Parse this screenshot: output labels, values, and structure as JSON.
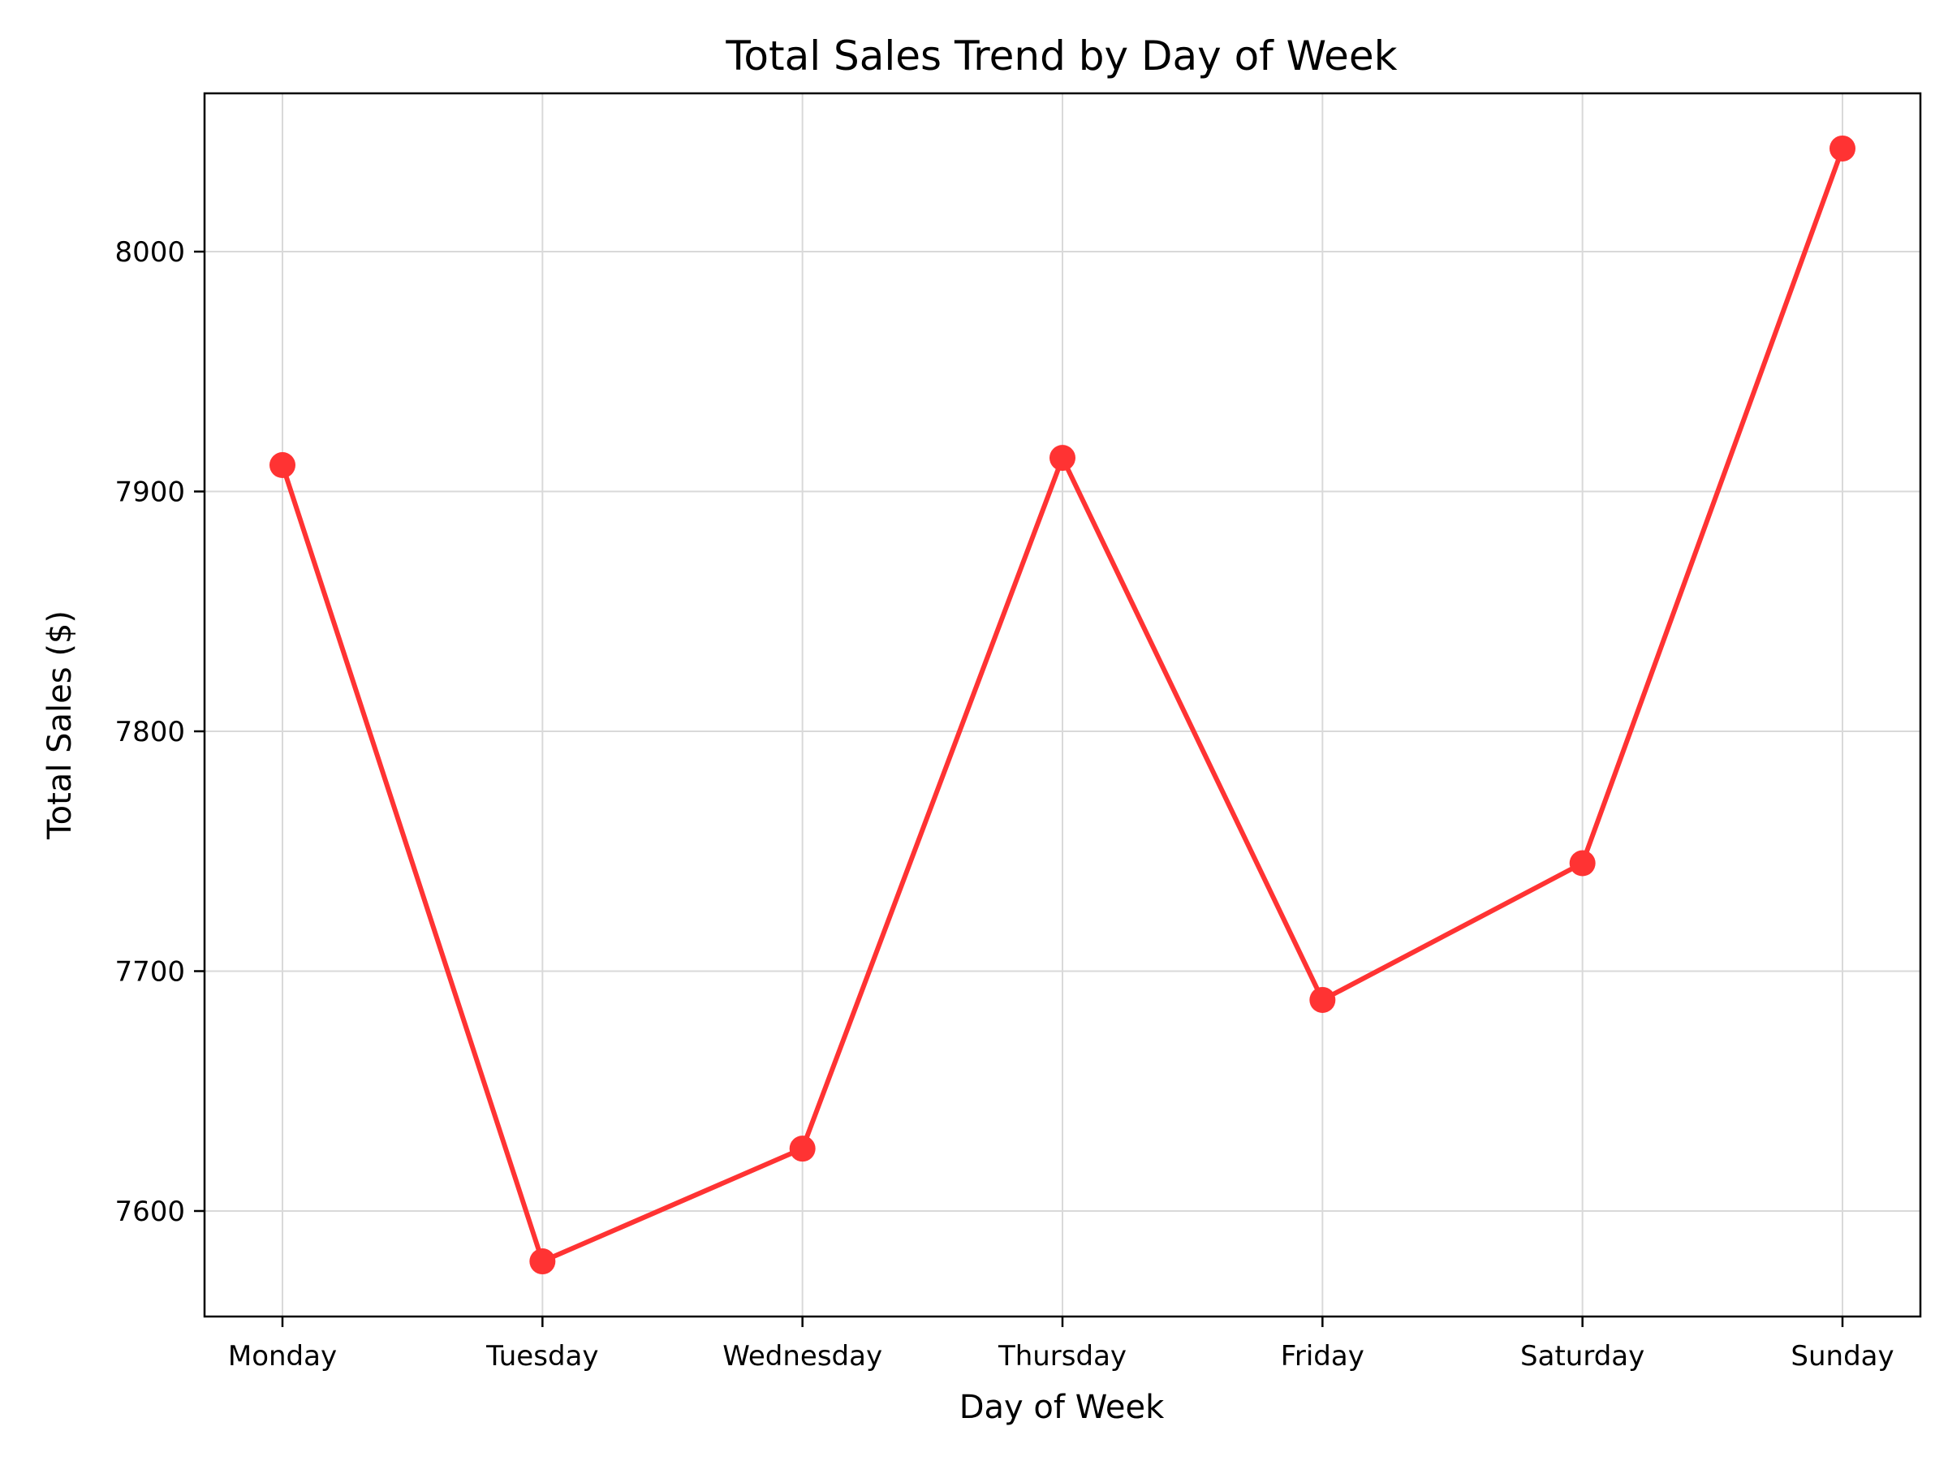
{
  "chart_data": {
    "type": "line",
    "title": "Total Sales Trend by Day of Week",
    "xlabel": "Day of Week",
    "ylabel": "Total Sales ($)",
    "categories": [
      "Monday",
      "Tuesday",
      "Wednesday",
      "Thursday",
      "Friday",
      "Saturday",
      "Sunday"
    ],
    "series": [
      {
        "values": [
          7911,
          7579,
          7626,
          7914,
          7688,
          7745,
          8043
        ],
        "color": "#ff3333"
      }
    ],
    "ylim": [
      7556,
      8066
    ],
    "yticks": [
      7600,
      7700,
      7800,
      7900,
      8000
    ],
    "grid": true,
    "legend": "none"
  }
}
